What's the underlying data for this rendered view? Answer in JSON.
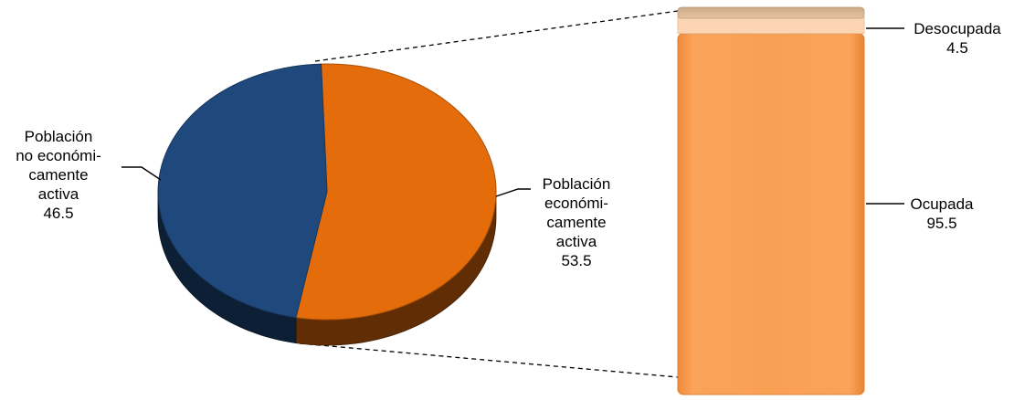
{
  "chart_data": [
    {
      "type": "pie",
      "categories": [
        "Población no económicamente activa",
        "Población económicamente activa"
      ],
      "values": [
        46.5,
        53.5
      ],
      "labels": [
        {
          "lines": [
            "Población",
            "no económi-",
            "camente",
            "activa"
          ],
          "value": "46.5"
        },
        {
          "lines": [
            "Población",
            "económi-",
            "camente",
            "activa"
          ],
          "value": "53.5"
        }
      ],
      "colors": [
        "#1f497d",
        "#e46c0a"
      ],
      "title": "",
      "legend": "none"
    },
    {
      "type": "bar",
      "stacked": true,
      "categories": [
        "Ocupada",
        "Desocupada"
      ],
      "values": [
        95.5,
        4.5
      ],
      "labels": [
        {
          "lines": [
            "Ocupada"
          ],
          "value": "95.5"
        },
        {
          "lines": [
            "Desocupada"
          ],
          "value": "4.5"
        }
      ],
      "colors": [
        "#f79646",
        "#fcd5b4"
      ],
      "title": "",
      "ylim": [
        0,
        100
      ],
      "legend": "none"
    }
  ]
}
